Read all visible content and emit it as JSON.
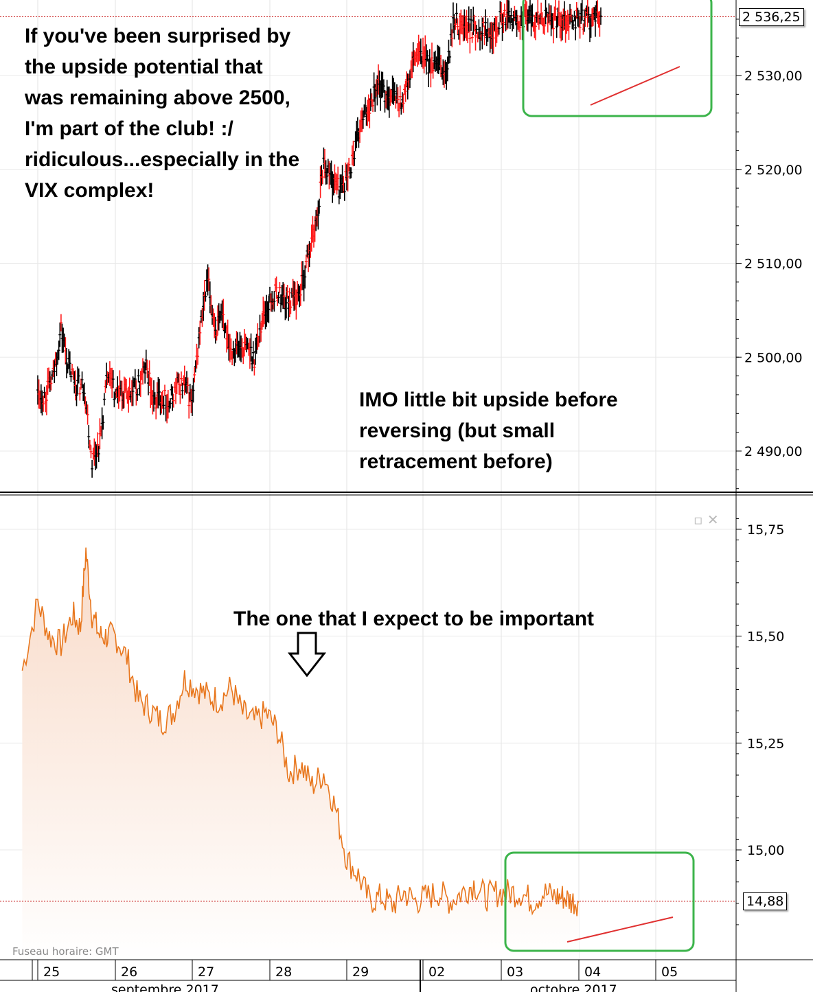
{
  "annotations": {
    "top_left": "If you've been surprised by\nthe upside potential that\nwas remaining above 2500,\nI'm part of the club!  :/\nridiculous...especially in the\nVIX complex!",
    "middle_right": "IMO little bit upside before\nreversing (but small\nretracement before)",
    "vix_arrow": "The one that I expect to be important"
  },
  "footer": {
    "timezone": "Fuseau horaire: GMT",
    "month_left": "septembre 2017",
    "month_right": "octobre 2017"
  },
  "colors": {
    "candle_up": "#000000",
    "candle_down": "#ff1a1a",
    "vix_line": "#e8771e",
    "vix_fill": "#f8d9c6",
    "box": "#3cb44b",
    "trendline": "#e03030",
    "last_price_line": "#c00000"
  },
  "chart_data": [
    {
      "type": "line",
      "subtype": "candlestick",
      "x_ticks": [
        "25",
        "26",
        "27",
        "28",
        "29",
        "02",
        "03",
        "04",
        "05"
      ],
      "y_ticks": [
        "2 490,00",
        "2 500,00",
        "2 510,00",
        "2 520,00",
        "2 530,00"
      ],
      "ylim": [
        2484,
        2537.5
      ],
      "last_value": "2 536,25",
      "series": [
        {
          "x": [
            0,
            0.1,
            0.2,
            0.3,
            0.4,
            0.5,
            0.6,
            0.7,
            0.8,
            0.9,
            1,
            1.1,
            1.2,
            1.3,
            1.4,
            1.5,
            1.6,
            1.7,
            1.8,
            1.9,
            2,
            2.1,
            2.2,
            2.3,
            2.4,
            2.5,
            2.6,
            2.7,
            2.8,
            2.9,
            3,
            3.1,
            3.2,
            3.3,
            3.4,
            3.5,
            3.6,
            3.7,
            3.8,
            3.9,
            4,
            4.1,
            4.2,
            4.3,
            4.4,
            4.5,
            4.6,
            4.7,
            4.8,
            4.9,
            5,
            5.1,
            5.2,
            5.3,
            5.4,
            5.5,
            5.6,
            5.7,
            5.8,
            5.9,
            6,
            6.1,
            6.2,
            6.3,
            6.4,
            6.5,
            6.6,
            6.7,
            6.8,
            6.9,
            7,
            7.1,
            7.2,
            7.3
          ],
          "values": [
            2496,
            2496,
            2498,
            2503,
            2499,
            2497,
            2497,
            2489,
            2491,
            2498,
            2496,
            2496,
            2496,
            2497,
            2499,
            2495,
            2496,
            2495,
            2497,
            2497,
            2495,
            2503,
            2508,
            2503,
            2504,
            2501,
            2501,
            2501,
            2500,
            2504,
            2506,
            2507,
            2506,
            2506,
            2507,
            2511,
            2514,
            2521,
            2519,
            2518,
            2519,
            2522,
            2525,
            2527,
            2529,
            2528,
            2528,
            2527,
            2529,
            2532,
            2532,
            2531,
            2531,
            2530,
            2536,
            2535,
            2535,
            2535,
            2535,
            2535,
            2536,
            2536,
            2536,
            2536,
            2536,
            2536,
            2536,
            2536,
            2536,
            2536,
            2536,
            2536,
            2536,
            2536
          ],
          "name": ""
        }
      ]
    },
    {
      "type": "area",
      "x_ticks": [
        "25",
        "26",
        "27",
        "28",
        "29",
        "02",
        "03",
        "04",
        "05"
      ],
      "y_ticks": [
        "15,00",
        "15,25",
        "15,50",
        "15,75"
      ],
      "ylim": [
        14.78,
        15.82
      ],
      "last_value": "14,88",
      "series": [
        {
          "x": [
            -0.2,
            0,
            0.15,
            0.3,
            0.45,
            0.55,
            0.62,
            0.7,
            0.8,
            0.9,
            1,
            1.15,
            1.3,
            1.45,
            1.6,
            1.75,
            1.9,
            2.05,
            2.2,
            2.35,
            2.5,
            2.65,
            2.8,
            2.95,
            3.1,
            3.25,
            3.4,
            3.55,
            3.7,
            3.85,
            4,
            4.15,
            4.3,
            4.45,
            4.6,
            4.75,
            4.9,
            5.05,
            5.2,
            5.35,
            5.5,
            5.65,
            5.8,
            5.95,
            6.1,
            6.25,
            6.4,
            6.55,
            6.7,
            6.8,
            6.9,
            7
          ],
          "values": [
            15.42,
            15.58,
            15.5,
            15.48,
            15.55,
            15.52,
            15.7,
            15.55,
            15.5,
            15.5,
            15.5,
            15.45,
            15.35,
            15.33,
            15.3,
            15.32,
            15.4,
            15.38,
            15.36,
            15.35,
            15.38,
            15.32,
            15.3,
            15.32,
            15.28,
            15.18,
            15.2,
            15.15,
            15.18,
            15.1,
            14.98,
            14.94,
            14.88,
            14.89,
            14.87,
            14.9,
            14.88,
            14.89,
            14.9,
            14.88,
            14.9,
            14.92,
            14.89,
            14.9,
            14.9,
            14.9,
            14.88,
            14.9,
            14.89,
            14.89,
            14.88,
            14.88
          ],
          "name": ""
        }
      ]
    }
  ]
}
